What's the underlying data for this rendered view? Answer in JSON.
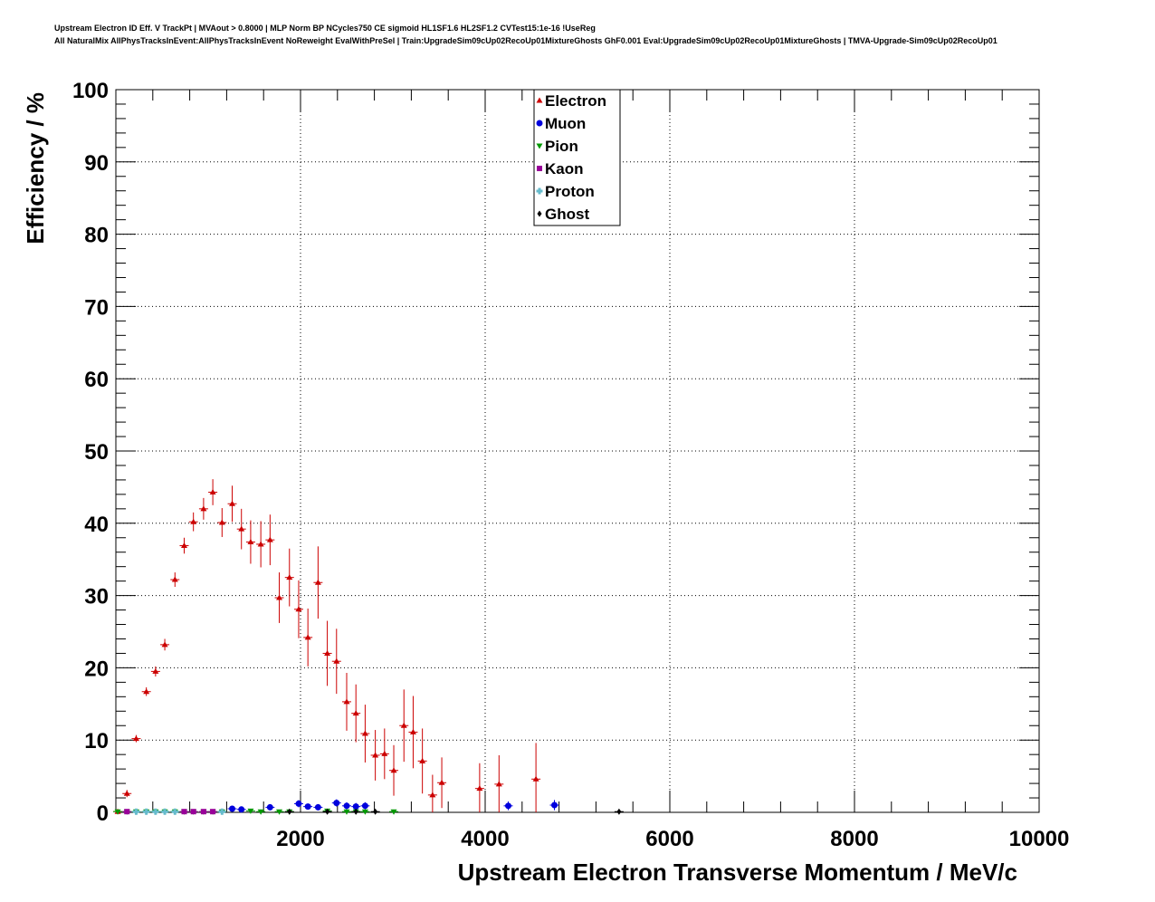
{
  "chart_data": {
    "type": "scatter",
    "title_line1": "Upstream Electron ID Eff. V TrackPt | MVAout > 0.8000 | MLP Norm BP NCycles750 CE sigmoid HL1SF1.6 HL2SF1.2 CVTest15:1e-16 !UseReg",
    "title_line2": "All NaturalMix AllPhysTracksInEvent:AllPhysTracksInEvent NoReweight EvalWithPreSel | Train:UpgradeSim09cUp02RecoUp01MixtureGhosts GhF0.001 Eval:UpgradeSim09cUp02RecoUp01MixtureGhosts | TMVA-Upgrade-Sim09cUp02RecoUp01",
    "xlabel": "Upstream Electron Transverse Momentum / MeV/c",
    "ylabel": "Efficiency / %",
    "xlim": [
      0,
      10000
    ],
    "ylim": [
      0,
      100
    ],
    "xticks": [
      2000,
      4000,
      6000,
      8000,
      10000
    ],
    "yticks": [
      0,
      10,
      20,
      30,
      40,
      50,
      60,
      70,
      80,
      90,
      100
    ],
    "grid": true,
    "legend_position": "top-center",
    "series": [
      {
        "name": "Electron",
        "color": "#cc0000",
        "marker": "triangle-up",
        "points": [
          {
            "x": 20,
            "y": 0.1,
            "err": 0.2
          },
          {
            "x": 120,
            "y": 2.6,
            "err": 0.5
          },
          {
            "x": 220,
            "y": 10.2,
            "err": 0.5
          },
          {
            "x": 330,
            "y": 16.7,
            "err": 0.6
          },
          {
            "x": 430,
            "y": 19.5,
            "err": 0.7
          },
          {
            "x": 530,
            "y": 23.2,
            "err": 0.8
          },
          {
            "x": 640,
            "y": 32.2,
            "err": 1.0
          },
          {
            "x": 740,
            "y": 36.9,
            "err": 1.1
          },
          {
            "x": 840,
            "y": 40.2,
            "err": 1.3
          },
          {
            "x": 950,
            "y": 42.0,
            "err": 1.5
          },
          {
            "x": 1050,
            "y": 44.3,
            "err": 1.8
          },
          {
            "x": 1150,
            "y": 40.1,
            "err": 2.0
          },
          {
            "x": 1260,
            "y": 42.7,
            "err": 2.5
          },
          {
            "x": 1360,
            "y": 39.2,
            "err": 2.8
          },
          {
            "x": 1460,
            "y": 37.4,
            "err": 3.0
          },
          {
            "x": 1570,
            "y": 37.1,
            "err": 3.2
          },
          {
            "x": 1670,
            "y": 37.7,
            "err": 3.5
          },
          {
            "x": 1770,
            "y": 29.7,
            "err": 3.5
          },
          {
            "x": 1880,
            "y": 32.5,
            "err": 4.0
          },
          {
            "x": 1980,
            "y": 28.1,
            "err": 4.0
          },
          {
            "x": 2080,
            "y": 24.2,
            "err": 4.0
          },
          {
            "x": 2190,
            "y": 31.8,
            "err": 5.0
          },
          {
            "x": 2290,
            "y": 22.0,
            "err": 4.5
          },
          {
            "x": 2390,
            "y": 20.9,
            "err": 4.5
          },
          {
            "x": 2500,
            "y": 15.3,
            "err": 4.0
          },
          {
            "x": 2600,
            "y": 13.7,
            "err": 4.0
          },
          {
            "x": 2700,
            "y": 10.9,
            "err": 4.0
          },
          {
            "x": 2810,
            "y": 7.9,
            "err": 3.5
          },
          {
            "x": 2910,
            "y": 8.1,
            "err": 3.5
          },
          {
            "x": 3010,
            "y": 5.8,
            "err": 3.5
          },
          {
            "x": 3120,
            "y": 12.0,
            "err": 5.0
          },
          {
            "x": 3220,
            "y": 11.1,
            "err": 5.0
          },
          {
            "x": 3320,
            "y": 7.1,
            "err": 4.5
          },
          {
            "x": 3430,
            "y": 2.4,
            "err": 2.8
          },
          {
            "x": 3530,
            "y": 4.1,
            "err": 3.5
          },
          {
            "x": 3940,
            "y": 3.3,
            "err": 3.5
          },
          {
            "x": 4150,
            "y": 3.9,
            "err": 4.0
          },
          {
            "x": 4550,
            "y": 4.6,
            "err": 5.0
          }
        ]
      },
      {
        "name": "Muon",
        "color": "#0000dd",
        "marker": "circle",
        "points": [
          {
            "x": 1260,
            "y": 0.5,
            "err": 0.3
          },
          {
            "x": 1360,
            "y": 0.4,
            "err": 0.3
          },
          {
            "x": 1670,
            "y": 0.7,
            "err": 0.4
          },
          {
            "x": 1980,
            "y": 1.2,
            "err": 0.5
          },
          {
            "x": 2080,
            "y": 0.8,
            "err": 0.4
          },
          {
            "x": 2190,
            "y": 0.7,
            "err": 0.4
          },
          {
            "x": 2390,
            "y": 1.3,
            "err": 0.5
          },
          {
            "x": 2500,
            "y": 0.9,
            "err": 0.5
          },
          {
            "x": 2600,
            "y": 0.8,
            "err": 0.5
          },
          {
            "x": 2700,
            "y": 0.9,
            "err": 0.5
          },
          {
            "x": 4250,
            "y": 0.9,
            "err": 0.6
          },
          {
            "x": 4750,
            "y": 1.0,
            "err": 0.7
          }
        ]
      },
      {
        "name": "Pion",
        "color": "#009900",
        "marker": "triangle-down",
        "points": [
          {
            "x": 20,
            "y": 0.1,
            "err": 0.1
          },
          {
            "x": 120,
            "y": 0.1,
            "err": 0.1
          },
          {
            "x": 220,
            "y": 0.1,
            "err": 0.1
          },
          {
            "x": 330,
            "y": 0.1,
            "err": 0.1
          },
          {
            "x": 430,
            "y": 0.1,
            "err": 0.1
          },
          {
            "x": 530,
            "y": 0.1,
            "err": 0.1
          },
          {
            "x": 640,
            "y": 0.1,
            "err": 0.1
          },
          {
            "x": 740,
            "y": 0.1,
            "err": 0.1
          },
          {
            "x": 840,
            "y": 0.1,
            "err": 0.1
          },
          {
            "x": 950,
            "y": 0.1,
            "err": 0.1
          },
          {
            "x": 1050,
            "y": 0.1,
            "err": 0.1
          },
          {
            "x": 1150,
            "y": 0.1,
            "err": 0.1
          },
          {
            "x": 1460,
            "y": 0.2,
            "err": 0.2
          },
          {
            "x": 1570,
            "y": 0.1,
            "err": 0.2
          },
          {
            "x": 1770,
            "y": 0.1,
            "err": 0.2
          },
          {
            "x": 1880,
            "y": 0.1,
            "err": 0.2
          },
          {
            "x": 2290,
            "y": 0.2,
            "err": 0.2
          },
          {
            "x": 2500,
            "y": 0.1,
            "err": 0.2
          },
          {
            "x": 2600,
            "y": 0.1,
            "err": 0.2
          },
          {
            "x": 2700,
            "y": 0.1,
            "err": 0.2
          },
          {
            "x": 3010,
            "y": 0.1,
            "err": 0.2
          }
        ]
      },
      {
        "name": "Kaon",
        "color": "#990099",
        "marker": "square",
        "points": [
          {
            "x": 120,
            "y": 0.1,
            "err": 0.1
          },
          {
            "x": 740,
            "y": 0.1,
            "err": 0.1
          },
          {
            "x": 840,
            "y": 0.1,
            "err": 0.1
          },
          {
            "x": 950,
            "y": 0.1,
            "err": 0.1
          },
          {
            "x": 1050,
            "y": 0.1,
            "err": 0.1
          }
        ]
      },
      {
        "name": "Proton",
        "color": "#66bbcc",
        "marker": "cross",
        "points": [
          {
            "x": 220,
            "y": 0.1,
            "err": 0.1
          },
          {
            "x": 330,
            "y": 0.1,
            "err": 0.1
          },
          {
            "x": 430,
            "y": 0.1,
            "err": 0.1
          },
          {
            "x": 530,
            "y": 0.1,
            "err": 0.1
          },
          {
            "x": 640,
            "y": 0.1,
            "err": 0.1
          },
          {
            "x": 1150,
            "y": 0.1,
            "err": 0.1
          }
        ]
      },
      {
        "name": "Ghost",
        "color": "#000000",
        "marker": "diamond",
        "points": [
          {
            "x": 1880,
            "y": 0.1,
            "err": 0.1
          },
          {
            "x": 2290,
            "y": 0.1,
            "err": 0.1
          },
          {
            "x": 2600,
            "y": 0.1,
            "err": 0.1
          },
          {
            "x": 2810,
            "y": 0.1,
            "err": 0.1
          },
          {
            "x": 5450,
            "y": 0.1,
            "err": 0.1
          }
        ]
      }
    ]
  }
}
